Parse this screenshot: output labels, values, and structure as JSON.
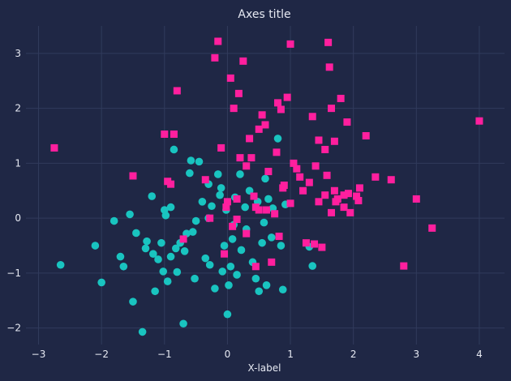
{
  "colors": {
    "background": "#1f2745",
    "grid": "#313b5c",
    "text": "#e6e9f2",
    "series_a": "#19c4c0",
    "series_b": "#ff1f9e"
  },
  "chart_data": {
    "type": "scatter",
    "title": "Axes title",
    "xlabel": "X-label",
    "ylabel": "",
    "xlim": [
      -3.2,
      4.4
    ],
    "ylim": [
      -2.3,
      3.5
    ],
    "xticks": [
      -3,
      -2,
      -1,
      0,
      1,
      2,
      3,
      4
    ],
    "yticks": [
      -2,
      -1,
      0,
      1,
      2,
      3
    ],
    "grid": true,
    "legend": "none",
    "series": [
      {
        "marker": "circle",
        "color": "#19c4c0",
        "points": [
          [
            -2.65,
            -0.85
          ],
          [
            -2.1,
            -0.5
          ],
          [
            -2.0,
            -1.17
          ],
          [
            -1.8,
            -0.05
          ],
          [
            -1.7,
            -0.7
          ],
          [
            -1.65,
            -0.88
          ],
          [
            -1.55,
            0.07
          ],
          [
            -1.5,
            -1.52
          ],
          [
            -1.45,
            -0.27
          ],
          [
            -1.35,
            -2.07
          ],
          [
            -1.3,
            -0.55
          ],
          [
            -1.28,
            -0.42
          ],
          [
            -1.2,
            0.4
          ],
          [
            -1.18,
            -0.65
          ],
          [
            -1.15,
            -1.33
          ],
          [
            -1.1,
            -0.75
          ],
          [
            -1.05,
            -0.45
          ],
          [
            -1.02,
            -0.97
          ],
          [
            -1.0,
            0.15
          ],
          [
            -0.98,
            0.05
          ],
          [
            -0.95,
            -1.15
          ],
          [
            -0.9,
            -0.7
          ],
          [
            -0.85,
            1.25
          ],
          [
            -0.82,
            -0.55
          ],
          [
            -0.8,
            -0.98
          ],
          [
            -0.75,
            -0.45
          ],
          [
            -0.7,
            -1.92
          ],
          [
            -0.68,
            -0.6
          ],
          [
            -0.65,
            -0.28
          ],
          [
            -0.6,
            0.82
          ],
          [
            -0.58,
            1.05
          ],
          [
            -0.55,
            -0.25
          ],
          [
            -0.52,
            -1.1
          ],
          [
            -0.5,
            -0.05
          ],
          [
            -0.45,
            1.03
          ],
          [
            -0.4,
            0.3
          ],
          [
            -0.35,
            -0.73
          ],
          [
            -0.3,
            0.0
          ],
          [
            -0.28,
            -0.85
          ],
          [
            -0.25,
            0.22
          ],
          [
            -0.2,
            -1.28
          ],
          [
            -0.15,
            0.8
          ],
          [
            -0.12,
            0.42
          ],
          [
            -0.08,
            -0.97
          ],
          [
            -0.05,
            -0.5
          ],
          [
            -0.02,
            0.15
          ],
          [
            0.0,
            -1.75
          ],
          [
            0.02,
            -1.22
          ],
          [
            0.05,
            -0.88
          ],
          [
            0.08,
            -0.38
          ],
          [
            0.1,
            -0.12
          ],
          [
            0.12,
            0.38
          ],
          [
            0.15,
            -1.03
          ],
          [
            0.2,
            0.8
          ],
          [
            0.22,
            -0.58
          ],
          [
            0.28,
            0.2
          ],
          [
            0.3,
            -0.2
          ],
          [
            0.35,
            0.5
          ],
          [
            0.4,
            -0.8
          ],
          [
            0.45,
            -1.1
          ],
          [
            0.48,
            0.3
          ],
          [
            0.5,
            -1.33
          ],
          [
            0.55,
            -0.45
          ],
          [
            0.58,
            -0.08
          ],
          [
            0.6,
            0.72
          ],
          [
            0.62,
            -1.22
          ],
          [
            0.65,
            0.35
          ],
          [
            0.7,
            -0.35
          ],
          [
            0.72,
            0.18
          ],
          [
            0.8,
            1.45
          ],
          [
            0.85,
            -0.5
          ],
          [
            0.88,
            -1.3
          ],
          [
            0.92,
            0.25
          ],
          [
            1.3,
            -0.52
          ],
          [
            1.35,
            -0.87
          ],
          [
            -0.9,
            0.2
          ],
          [
            -0.3,
            0.62
          ],
          [
            -0.1,
            0.55
          ]
        ]
      },
      {
        "marker": "square",
        "color": "#ff1f9e",
        "points": [
          [
            -2.75,
            1.28
          ],
          [
            -1.5,
            0.77
          ],
          [
            -1.0,
            1.53
          ],
          [
            -0.95,
            0.67
          ],
          [
            -0.85,
            1.53
          ],
          [
            -0.8,
            2.32
          ],
          [
            -0.7,
            -0.38
          ],
          [
            -0.35,
            0.7
          ],
          [
            -0.2,
            2.92
          ],
          [
            -0.15,
            3.22
          ],
          [
            -0.1,
            1.28
          ],
          [
            -0.05,
            -0.65
          ],
          [
            0.0,
            0.3
          ],
          [
            0.05,
            2.55
          ],
          [
            0.1,
            2.0
          ],
          [
            0.15,
            0.35
          ],
          [
            0.18,
            2.27
          ],
          [
            0.2,
            1.1
          ],
          [
            0.25,
            2.86
          ],
          [
            0.3,
            0.95
          ],
          [
            0.35,
            1.45
          ],
          [
            0.38,
            1.1
          ],
          [
            0.42,
            0.4
          ],
          [
            0.45,
            0.2
          ],
          [
            0.5,
            1.62
          ],
          [
            0.55,
            1.88
          ],
          [
            0.6,
            1.7
          ],
          [
            0.62,
            0.15
          ],
          [
            0.65,
            0.85
          ],
          [
            0.7,
            -0.8
          ],
          [
            0.75,
            0.08
          ],
          [
            0.78,
            1.2
          ],
          [
            0.8,
            2.1
          ],
          [
            0.85,
            1.98
          ],
          [
            0.88,
            0.55
          ],
          [
            0.9,
            0.6
          ],
          [
            0.95,
            2.2
          ],
          [
            1.0,
            3.17
          ],
          [
            1.05,
            1.0
          ],
          [
            1.1,
            0.9
          ],
          [
            1.15,
            0.75
          ],
          [
            1.2,
            0.5
          ],
          [
            1.25,
            -0.45
          ],
          [
            1.3,
            0.65
          ],
          [
            1.35,
            1.85
          ],
          [
            1.4,
            0.95
          ],
          [
            1.45,
            0.3
          ],
          [
            1.5,
            -0.53
          ],
          [
            1.55,
            1.25
          ],
          [
            1.6,
            3.2
          ],
          [
            1.62,
            2.75
          ],
          [
            1.65,
            0.1
          ],
          [
            1.7,
            0.5
          ],
          [
            1.75,
            0.35
          ],
          [
            1.8,
            2.18
          ],
          [
            1.85,
            0.2
          ],
          [
            1.9,
            1.75
          ],
          [
            1.95,
            0.1
          ],
          [
            2.05,
            0.4
          ],
          [
            2.1,
            0.55
          ],
          [
            2.2,
            1.5
          ],
          [
            2.35,
            0.75
          ],
          [
            2.6,
            0.7
          ],
          [
            2.8,
            -0.87
          ],
          [
            3.0,
            0.35
          ],
          [
            3.25,
            -0.18
          ],
          [
            4.0,
            1.77
          ],
          [
            0.82,
            -0.33
          ],
          [
            1.38,
            -0.47
          ],
          [
            1.92,
            0.45
          ],
          [
            2.08,
            0.32
          ],
          [
            1.58,
            0.78
          ],
          [
            1.7,
            1.4
          ],
          [
            0.3,
            -0.28
          ],
          [
            0.5,
            0.15
          ],
          [
            1.72,
            0.3
          ],
          [
            1.85,
            0.42
          ],
          [
            1.0,
            0.27
          ],
          [
            0.15,
            -0.02
          ],
          [
            0.08,
            -0.15
          ],
          [
            -0.02,
            0.2
          ],
          [
            -0.28,
            0.0
          ],
          [
            0.45,
            -0.88
          ],
          [
            1.55,
            0.42
          ],
          [
            1.65,
            2.0
          ],
          [
            1.45,
            1.42
          ],
          [
            -0.9,
            0.62
          ]
        ]
      }
    ]
  }
}
